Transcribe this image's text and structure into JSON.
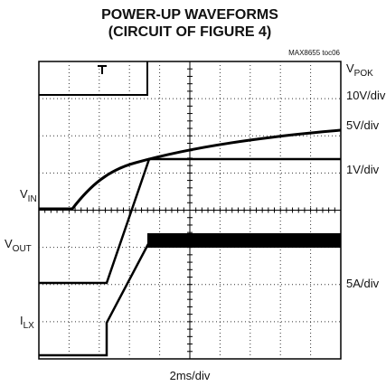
{
  "chart_data": {
    "type": "scope",
    "title": "POWER-UP WAVEFORMS",
    "subtitle": "(CIRCUIT OF FIGURE 4)",
    "annotation": "MAX8655 toc06",
    "x_label": "2ms/div",
    "channels": [
      {
        "symbol": "V",
        "subscript": "POK",
        "scale": "10V/div"
      },
      {
        "symbol": "V",
        "subscript": "IN",
        "scale": "5V/div"
      },
      {
        "symbol": "V",
        "subscript": "OUT",
        "scale": "1V/div"
      },
      {
        "symbol": "I",
        "subscript": "LX",
        "scale": "5A/div"
      }
    ]
  }
}
